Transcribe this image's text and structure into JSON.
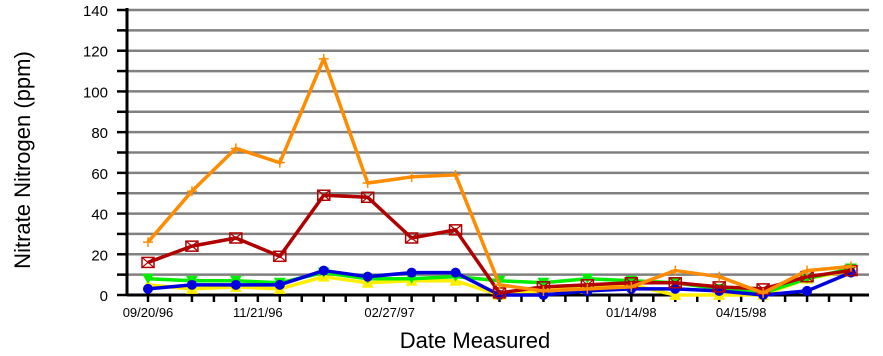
{
  "chart_data": {
    "type": "line",
    "title": "",
    "xlabel": "Date Measured",
    "ylabel": "Nitrate Nitrogen (ppm)",
    "ylim": [
      0,
      140
    ],
    "yticks": [
      "0",
      "20",
      "40",
      "60",
      "80",
      "100",
      "120",
      "140"
    ],
    "grid": true,
    "legend": "none",
    "n_points": 17,
    "xtick_labels": [
      {
        "index": 0,
        "label": "09/20/96"
      },
      {
        "index": 2.5,
        "label": "11/21/96"
      },
      {
        "index": 5.5,
        "label": "02/27/97"
      },
      {
        "index": 11,
        "label": "01/14/98"
      },
      {
        "index": 13.5,
        "label": "04/15/98"
      }
    ],
    "series": [
      {
        "color": "#FF8C00",
        "marker": "plus",
        "values": [
          26,
          51,
          72,
          65,
          116,
          55,
          58,
          59,
          5,
          2,
          3,
          4,
          12,
          9,
          1,
          12,
          14
        ]
      },
      {
        "color": "#B00000",
        "marker": "boxed-x",
        "values": [
          16,
          24,
          28,
          19,
          49,
          48,
          28,
          32,
          1,
          4,
          5,
          6,
          6,
          4,
          3,
          9,
          12
        ]
      },
      {
        "color": "#0000DD",
        "marker": "circle",
        "values": [
          3,
          5,
          5,
          5,
          12,
          9,
          11,
          11,
          0,
          0,
          2,
          3,
          3,
          2,
          0,
          2,
          11
        ]
      },
      {
        "color": "#00EE00",
        "marker": "triangle-down",
        "values": [
          8,
          7,
          7,
          6,
          11,
          8,
          8,
          9,
          7,
          6,
          8,
          7,
          6,
          3,
          1,
          8,
          13
        ]
      },
      {
        "color": "#FFEE00",
        "marker": "triangle-up",
        "values": [
          5,
          3,
          4,
          3,
          9,
          6,
          7,
          7,
          0,
          2,
          4,
          5,
          0,
          0,
          0,
          8,
          12
        ]
      }
    ]
  }
}
